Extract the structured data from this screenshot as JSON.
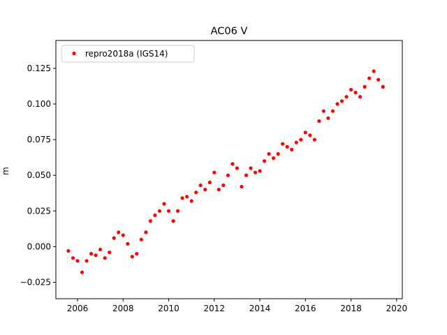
{
  "chart_data": {
    "type": "scatter",
    "title": "AC06 V",
    "xlabel": "",
    "ylabel": "m",
    "xlim": [
      2005.05,
      2020.25
    ],
    "ylim": [
      -0.0365,
      0.1445
    ],
    "xticks": [
      2006,
      2008,
      2010,
      2012,
      2014,
      2016,
      2018,
      2020
    ],
    "yticks": [
      -0.025,
      0.0,
      0.025,
      0.05,
      0.075,
      0.1,
      0.125
    ],
    "ytick_labels": [
      "−0.025",
      "0.000",
      "0.025",
      "0.050",
      "0.075",
      "0.100",
      "0.125"
    ],
    "grid": false,
    "legend_position": "top-left",
    "series": [
      {
        "name": "repro2018a (IGS14)",
        "color": "#ff0000",
        "marker": "circle",
        "x": [
          2005.6,
          2005.8,
          2006.0,
          2006.2,
          2006.4,
          2006.6,
          2006.8,
          2007.0,
          2007.2,
          2007.4,
          2007.6,
          2007.8,
          2008.0,
          2008.2,
          2008.4,
          2008.6,
          2008.8,
          2009.0,
          2009.2,
          2009.4,
          2009.6,
          2009.8,
          2010.0,
          2010.2,
          2010.4,
          2010.6,
          2010.8,
          2011.0,
          2011.2,
          2011.4,
          2011.6,
          2011.8,
          2012.0,
          2012.2,
          2012.4,
          2012.6,
          2012.8,
          2013.0,
          2013.2,
          2013.4,
          2013.6,
          2013.8,
          2014.0,
          2014.2,
          2014.4,
          2014.6,
          2014.8,
          2015.0,
          2015.2,
          2015.4,
          2015.6,
          2015.8,
          2016.0,
          2016.2,
          2016.4,
          2016.6,
          2016.8,
          2017.0,
          2017.2,
          2017.4,
          2017.6,
          2017.8,
          2018.0,
          2018.2,
          2018.4,
          2018.6,
          2018.8,
          2019.0,
          2019.2,
          2019.4
        ],
        "y": [
          -0.003,
          -0.008,
          -0.01,
          -0.018,
          -0.01,
          -0.005,
          -0.006,
          -0.002,
          -0.008,
          -0.004,
          0.006,
          0.01,
          0.008,
          0.002,
          -0.007,
          -0.005,
          0.005,
          0.01,
          0.018,
          0.022,
          0.025,
          0.03,
          0.025,
          0.018,
          0.025,
          0.034,
          0.035,
          0.032,
          0.038,
          0.043,
          0.04,
          0.045,
          0.052,
          0.04,
          0.043,
          0.05,
          0.058,
          0.055,
          0.042,
          0.05,
          0.055,
          0.052,
          0.053,
          0.06,
          0.065,
          0.062,
          0.065,
          0.072,
          0.07,
          0.068,
          0.073,
          0.075,
          0.08,
          0.078,
          0.075,
          0.088,
          0.095,
          0.09,
          0.095,
          0.1,
          0.102,
          0.105,
          0.11,
          0.108,
          0.105,
          0.112,
          0.118,
          0.123,
          0.117,
          0.112
        ]
      }
    ]
  }
}
